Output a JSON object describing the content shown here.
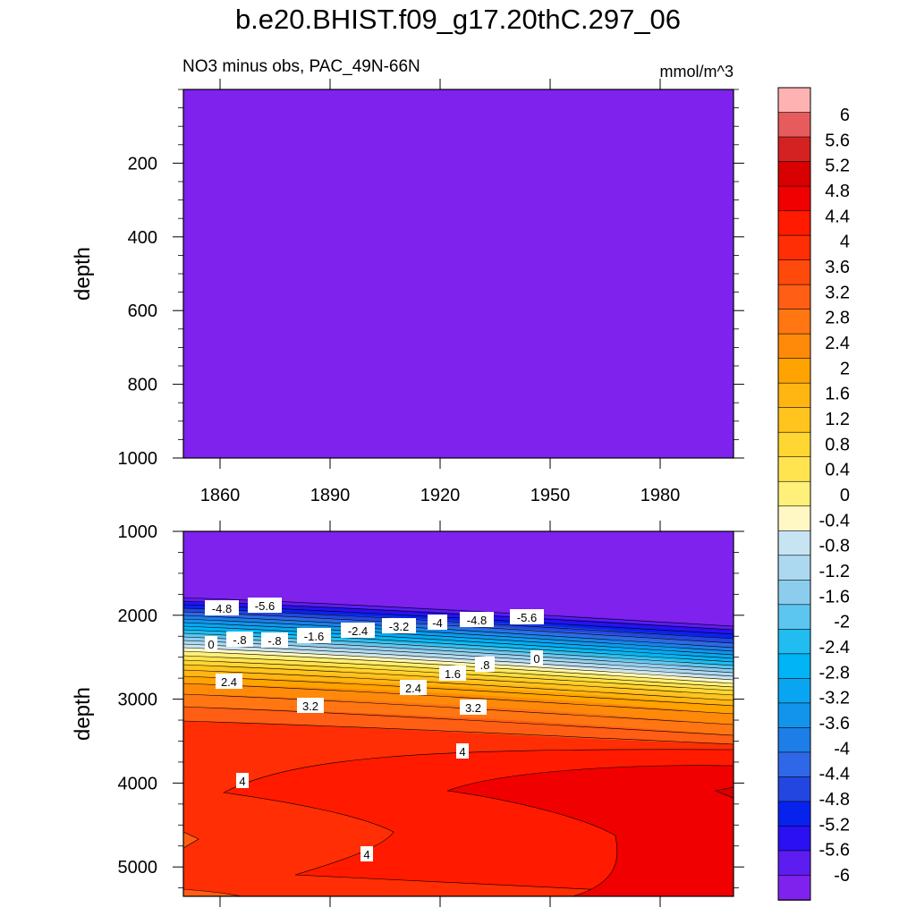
{
  "title": "b.e20.BHIST.f09_g17.20thC.297_06",
  "subtitle": "NO3 minus obs, PAC_49N-66N",
  "units": "mmol/m^3",
  "colors": {
    "background": "#7f22ee",
    "levels": [
      "#7f22ee",
      "#5d1df0",
      "#2a10f2",
      "#0822ee",
      "#2446e0",
      "#2f68e6",
      "#1d7ee8",
      "#1294ec",
      "#0aa5f0",
      "#00b4f5",
      "#22bdf0",
      "#5cc6f0",
      "#8ccdee",
      "#add9f0",
      "#c7e4f2",
      "#fff8c4",
      "#fff07a",
      "#ffe450",
      "#ffd632",
      "#ffc41e",
      "#ffb512",
      "#ffa300",
      "#ff8a0a",
      "#ff7612",
      "#ff5e14",
      "#ff4a0c",
      "#ff2e04",
      "#ff1a00",
      "#f00000",
      "#d80000",
      "#d42222",
      "#e65c5c",
      "#ffb2b2"
    ]
  },
  "chart_data": [
    {
      "type": "heatmap",
      "panel": "upper",
      "ylabel": "depth",
      "ylim": [
        1000,
        0
      ],
      "yticks": [
        200,
        400,
        600,
        800,
        1000
      ],
      "x_ticks": [
        1860,
        1890,
        1920,
        1950,
        1980
      ],
      "fill_value": -6
    },
    {
      "type": "heatmap",
      "panel": "lower",
      "ylabel": "depth",
      "ylim": [
        5350,
        1000
      ],
      "yticks": [
        1000,
        2000,
        3000,
        4000,
        5000
      ],
      "x_ticks": [
        1860,
        1890,
        1920,
        1950,
        1980
      ],
      "contour_labels": [
        "-4.8",
        "-5.6",
        "-.8",
        "-.8",
        "-1.6",
        "-2.4",
        "-3.2",
        "-4",
        "-4.8",
        "-5.6",
        "0",
        "2.4",
        "3.2",
        "1.6",
        "2.4",
        ".8",
        "0",
        "3.2",
        "4",
        "4",
        "4"
      ]
    }
  ],
  "colorbar": {
    "labels": [
      "6",
      "5.6",
      "5.2",
      "4.8",
      "4.4",
      "4",
      "3.6",
      "3.2",
      "2.8",
      "2.4",
      "2",
      "1.6",
      "1.2",
      "0.8",
      "0.4",
      "0",
      "-0.4",
      "-0.8",
      "-1.2",
      "-1.6",
      "-2",
      "-2.4",
      "-2.8",
      "-3.2",
      "-3.6",
      "-4",
      "-4.4",
      "-4.8",
      "-5.2",
      "-5.6",
      "-6"
    ]
  }
}
